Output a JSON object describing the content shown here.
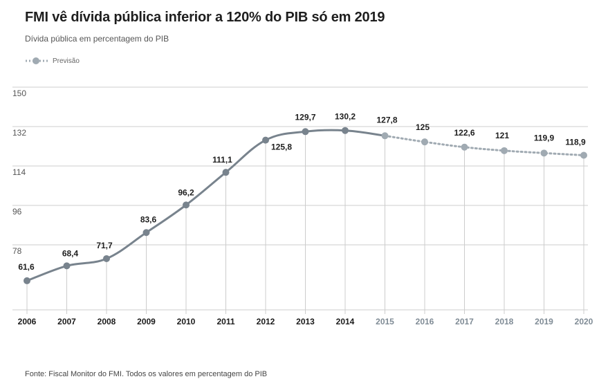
{
  "title": "FMI vê dívida pública inferior a 120% do PIB só em 2019",
  "subtitle": "Dívida pública em percentagem do PIB",
  "legend_forecast": "Previsão",
  "source": "Fonte: Fiscal Monitor do FMI. Todos os valores em percentagem do PIB",
  "colors": {
    "line": "#78838d",
    "forecast": "#a0aab2",
    "actual_tick": "#1a1a1a",
    "forecast_tick": "#7f8b95",
    "grid": "#cccccc"
  },
  "chart_data": {
    "type": "line",
    "title": "FMI vê dívida pública inferior a 120% do PIB só em 2019",
    "subtitle": "Dívida pública em percentagem do PIB",
    "ylabel": "",
    "xlabel": "",
    "ylim": [
      60,
      150
    ],
    "yticks": [
      150,
      132,
      114,
      96,
      78
    ],
    "grid": "horizontal and vertical",
    "legend": "top-left",
    "x": [
      "2006",
      "2007",
      "2008",
      "2009",
      "2010",
      "2011",
      "2012",
      "2013",
      "2014",
      "2015",
      "2016",
      "2017",
      "2018",
      "2019",
      "2020"
    ],
    "values": [
      61.6,
      68.4,
      71.7,
      83.6,
      96.2,
      111.1,
      125.8,
      129.7,
      130.2,
      127.8,
      125,
      122.6,
      121,
      119.9,
      118.9
    ],
    "labels": [
      "61,6",
      "68,4",
      "71,7",
      "83,6",
      "96,2",
      "111,1",
      "125,8",
      "129,7",
      "130,2",
      "127,8",
      "125",
      "122,6",
      "121",
      "119,9",
      "118,9"
    ],
    "forecast_from": "2015"
  }
}
